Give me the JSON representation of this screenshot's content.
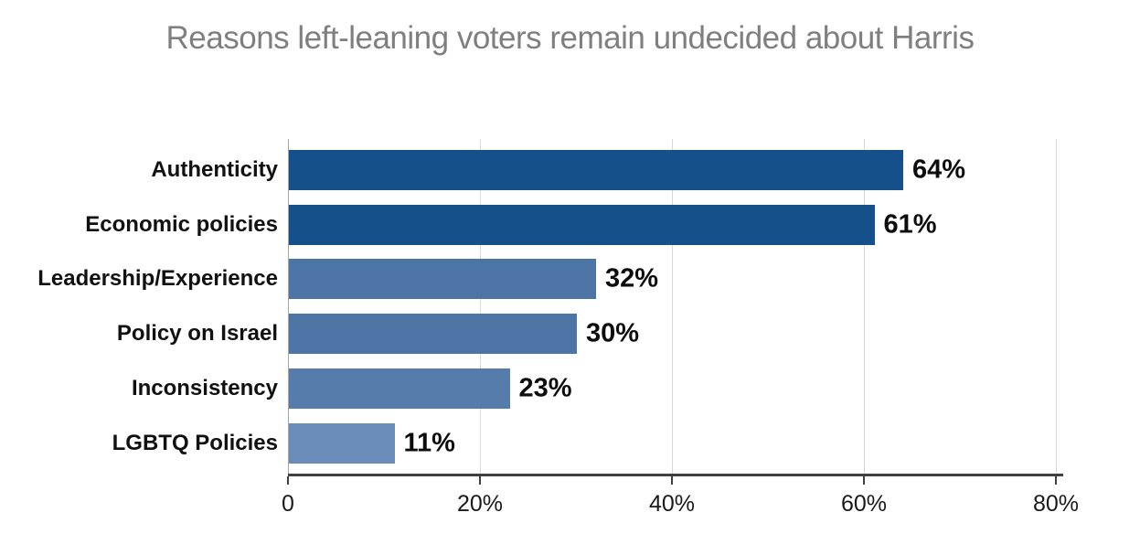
{
  "chart_data": {
    "type": "bar",
    "orientation": "horizontal",
    "title": "Reasons left-leaning voters remain undecided about Harris",
    "categories": [
      "Authenticity",
      "Economic policies",
      "Leadership/Experience",
      "Policy on Israel",
      "Inconsistency",
      "LGBTQ Policies"
    ],
    "values": [
      64,
      61,
      32,
      30,
      23,
      11
    ],
    "value_labels": [
      "64%",
      "61%",
      "32%",
      "30%",
      "23%",
      "11%"
    ],
    "bar_colors": [
      "#15508B",
      "#15508B",
      "#4C74A5",
      "#4C74A5",
      "#567CAB",
      "#6A8CB8"
    ],
    "xlabel": "",
    "ylabel": "",
    "xlim": [
      0,
      80
    ],
    "x_ticks": [
      0,
      20,
      40,
      60,
      80
    ],
    "x_tick_labels": [
      "0",
      "20%",
      "40%",
      "60%",
      "80%"
    ],
    "grid": "vertical",
    "legend": "none",
    "colors": {
      "title_text": "#7F7F7F",
      "gridline": "#D9D9D9",
      "baseline": "#A6A6A6",
      "axis_line": "#404040",
      "background": "#FFFFFF"
    }
  }
}
